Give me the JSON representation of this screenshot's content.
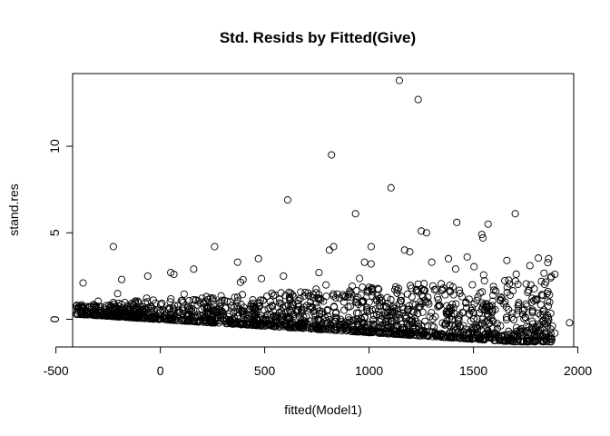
{
  "chart_data": {
    "type": "scatter",
    "title": "Std. Resids by Fitted(Give)",
    "xlabel": "fitted(Model1)",
    "ylabel": "stand.res",
    "xlim": [
      -420,
      1980
    ],
    "ylim": [
      -1.6,
      14.2
    ],
    "x_ticks": [
      -500,
      0,
      500,
      1000,
      1500,
      2000
    ],
    "x_tick_labels": [
      "-500",
      "0",
      "500",
      "1000",
      "1500",
      "2000"
    ],
    "y_ticks": [
      0,
      5,
      10
    ],
    "y_tick_labels": [
      "0",
      "5",
      "10"
    ],
    "grid": false,
    "legend": "none",
    "marker": "open-circle",
    "marker_color": "#000000",
    "notable_points": [
      {
        "x": 1145,
        "y": 13.8
      },
      {
        "x": 1235,
        "y": 12.7
      },
      {
        "x": 820,
        "y": 9.5
      },
      {
        "x": 1105,
        "y": 7.6
      },
      {
        "x": 610,
        "y": 6.9
      },
      {
        "x": 935,
        "y": 6.1
      },
      {
        "x": 1700,
        "y": 6.1
      },
      {
        "x": 1420,
        "y": 5.6
      },
      {
        "x": 1570,
        "y": 5.5
      },
      {
        "x": 1250,
        "y": 5.1
      },
      {
        "x": 1275,
        "y": 5.0
      },
      {
        "x": 1540,
        "y": 4.9
      },
      {
        "x": 1545,
        "y": 4.7
      },
      {
        "x": -225,
        "y": 4.2
      },
      {
        "x": 260,
        "y": 4.2
      },
      {
        "x": 1010,
        "y": 4.2
      },
      {
        "x": 1170,
        "y": 4.0
      },
      {
        "x": 1195,
        "y": 3.9
      },
      {
        "x": 810,
        "y": 4.0
      },
      {
        "x": 830,
        "y": 4.2
      },
      {
        "x": 1380,
        "y": 3.5
      },
      {
        "x": 1470,
        "y": 3.6
      },
      {
        "x": 1660,
        "y": 3.4
      },
      {
        "x": 1860,
        "y": 3.5
      },
      {
        "x": 1770,
        "y": 3.1
      },
      {
        "x": 470,
        "y": 3.5
      },
      {
        "x": 370,
        "y": 3.3
      },
      {
        "x": 1300,
        "y": 3.3
      },
      {
        "x": 1010,
        "y": 3.2
      },
      {
        "x": 160,
        "y": 2.9
      },
      {
        "x": 590,
        "y": 2.5
      },
      {
        "x": 760,
        "y": 2.7
      },
      {
        "x": -370,
        "y": 2.1
      },
      {
        "x": -185,
        "y": 2.3
      },
      {
        "x": -60,
        "y": 2.5
      },
      {
        "x": 50,
        "y": 2.7
      },
      {
        "x": 65,
        "y": 2.6
      },
      {
        "x": 1890,
        "y": 2.6
      },
      {
        "x": 1960,
        "y": -0.2
      },
      {
        "x": 1890,
        "y": -0.8
      },
      {
        "x": 1820,
        "y": -0.8
      },
      {
        "x": 1840,
        "y": -1.1
      },
      {
        "x": 1770,
        "y": -1.2
      }
    ],
    "cloud_description_fitted_range": [
      -410,
      1960
    ],
    "lower_boundary": {
      "x_start": -410,
      "y_start": 0.3,
      "x_end": 1700,
      "y_end": -1.3
    }
  }
}
